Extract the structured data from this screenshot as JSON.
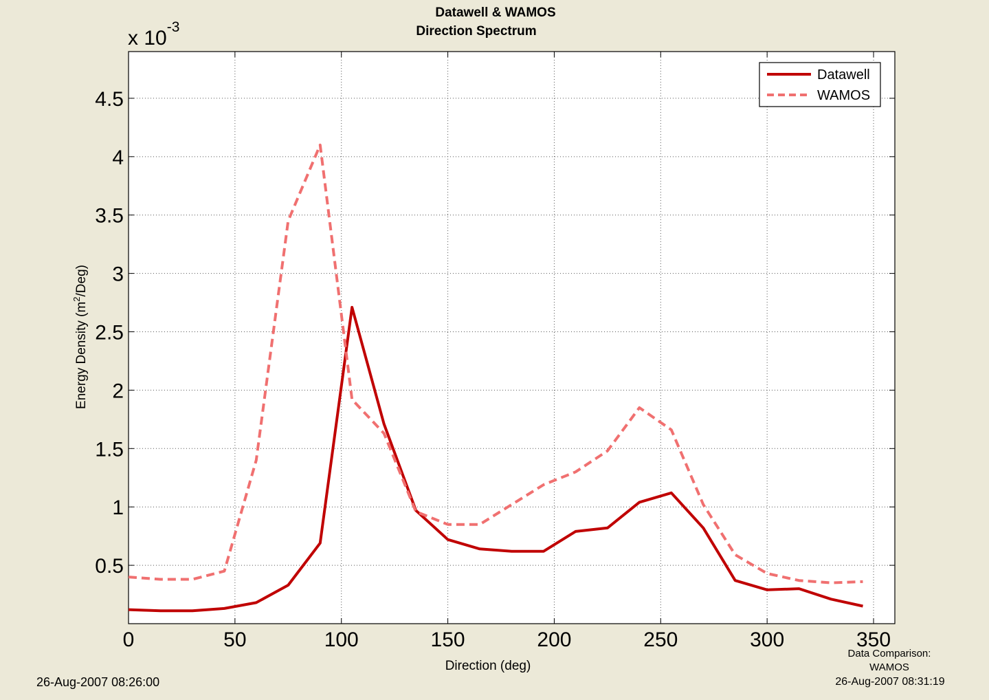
{
  "chart_data": {
    "type": "line",
    "title_line1": "Datawell  &  WAMOS",
    "title_line2": "Direction Spectrum",
    "exponent_label": "x 10",
    "exponent_power": "-3",
    "xlabel": "Direction (deg)",
    "ylabel_prefix": "Energy Density (m",
    "ylabel_sup": "2",
    "ylabel_suffix": "/Deg)",
    "xlim": [
      0,
      360
    ],
    "ylim": [
      0,
      4.9
    ],
    "xticks": [
      "0",
      "50",
      "100",
      "150",
      "200",
      "250",
      "300",
      "350"
    ],
    "yticks": [
      "0.5",
      "1",
      "1.5",
      "2",
      "2.5",
      "3",
      "3.5",
      "4",
      "4.5"
    ],
    "grid": true,
    "legend_position": "top-right",
    "x": [
      0,
      15,
      30,
      45,
      60,
      75,
      90,
      105,
      120,
      135,
      150,
      165,
      180,
      195,
      210,
      225,
      240,
      255,
      270,
      285,
      300,
      315,
      330,
      345
    ],
    "series": [
      {
        "name": "Datawell",
        "color": "#c00000",
        "style": "solid",
        "values": [
          0.12,
          0.11,
          0.11,
          0.13,
          0.18,
          0.33,
          0.69,
          2.71,
          1.71,
          0.97,
          0.72,
          0.64,
          0.62,
          0.62,
          0.79,
          0.82,
          1.04,
          1.12,
          0.82,
          0.37,
          0.29,
          0.3,
          0.21,
          0.15
        ]
      },
      {
        "name": "WAMOS",
        "color": "#f07070",
        "style": "dashed",
        "values": [
          0.4,
          0.38,
          0.38,
          0.45,
          1.4,
          3.45,
          4.1,
          1.92,
          1.63,
          0.96,
          0.85,
          0.85,
          1.02,
          1.19,
          1.3,
          1.48,
          1.85,
          1.66,
          1.02,
          0.59,
          0.43,
          0.37,
          0.35,
          0.36
        ]
      }
    ]
  },
  "footer": {
    "left_timestamp": "26-Aug-2007 08:26:00",
    "right_line1": "Data Comparison:",
    "right_line2": "WAMOS",
    "right_line3": "26-Aug-2007 08:31:19"
  }
}
